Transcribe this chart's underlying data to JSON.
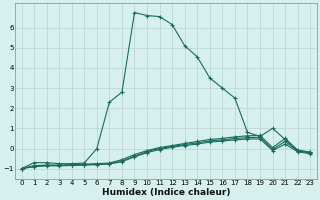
{
  "xlabel": "Humidex (Indice chaleur)",
  "background_color": "#d6f0ee",
  "grid_color": "#c0d8d4",
  "line_color": "#1a6b5e",
  "xlim": [
    -0.5,
    23.5
  ],
  "ylim": [
    -1.5,
    7.2
  ],
  "yticks": [
    -1,
    0,
    1,
    2,
    3,
    4,
    5,
    6
  ],
  "xticks": [
    0,
    1,
    2,
    3,
    4,
    5,
    6,
    7,
    8,
    9,
    10,
    11,
    12,
    13,
    14,
    15,
    16,
    17,
    18,
    19,
    20,
    21,
    22,
    23
  ],
  "series": [
    {
      "x": [
        0,
        1,
        2,
        3,
        4,
        5,
        6,
        7,
        8,
        9,
        10,
        11,
        12,
        13,
        14,
        15,
        16,
        17,
        18,
        19,
        20,
        21,
        22,
        23
      ],
      "y": [
        -1.0,
        -0.7,
        -0.7,
        -0.75,
        -0.75,
        -0.72,
        0.0,
        2.3,
        2.8,
        6.75,
        6.6,
        6.55,
        6.15,
        5.1,
        4.55,
        3.5,
        3.0,
        2.5,
        0.8,
        0.6,
        1.0,
        0.45,
        -0.1,
        -0.18
      ]
    },
    {
      "x": [
        0,
        1,
        2,
        3,
        4,
        5,
        6,
        7,
        8,
        9,
        10,
        11,
        12,
        13,
        14,
        15,
        16,
        17,
        18,
        19,
        20,
        21,
        22,
        23
      ],
      "y": [
        -1.0,
        -0.85,
        -0.82,
        -0.82,
        -0.8,
        -0.78,
        -0.75,
        -0.72,
        -0.55,
        -0.3,
        -0.1,
        0.05,
        0.15,
        0.25,
        0.35,
        0.45,
        0.5,
        0.58,
        0.63,
        0.65,
        0.05,
        0.5,
        -0.08,
        -0.18
      ]
    },
    {
      "x": [
        0,
        1,
        2,
        3,
        4,
        5,
        6,
        7,
        8,
        9,
        10,
        11,
        12,
        13,
        14,
        15,
        16,
        17,
        18,
        19,
        20,
        21,
        22,
        23
      ],
      "y": [
        -1.0,
        -0.88,
        -0.84,
        -0.84,
        -0.82,
        -0.8,
        -0.78,
        -0.75,
        -0.62,
        -0.38,
        -0.15,
        0.0,
        0.1,
        0.2,
        0.28,
        0.38,
        0.43,
        0.5,
        0.54,
        0.56,
        -0.04,
        0.35,
        -0.12,
        -0.22
      ]
    },
    {
      "x": [
        0,
        1,
        2,
        3,
        4,
        5,
        6,
        7,
        8,
        9,
        10,
        11,
        12,
        13,
        14,
        15,
        16,
        17,
        18,
        19,
        20,
        21,
        22,
        23
      ],
      "y": [
        -1.0,
        -0.9,
        -0.86,
        -0.86,
        -0.84,
        -0.82,
        -0.8,
        -0.77,
        -0.65,
        -0.42,
        -0.2,
        -0.05,
        0.06,
        0.15,
        0.22,
        0.32,
        0.37,
        0.43,
        0.47,
        0.48,
        -0.1,
        0.22,
        -0.16,
        -0.26
      ]
    }
  ]
}
